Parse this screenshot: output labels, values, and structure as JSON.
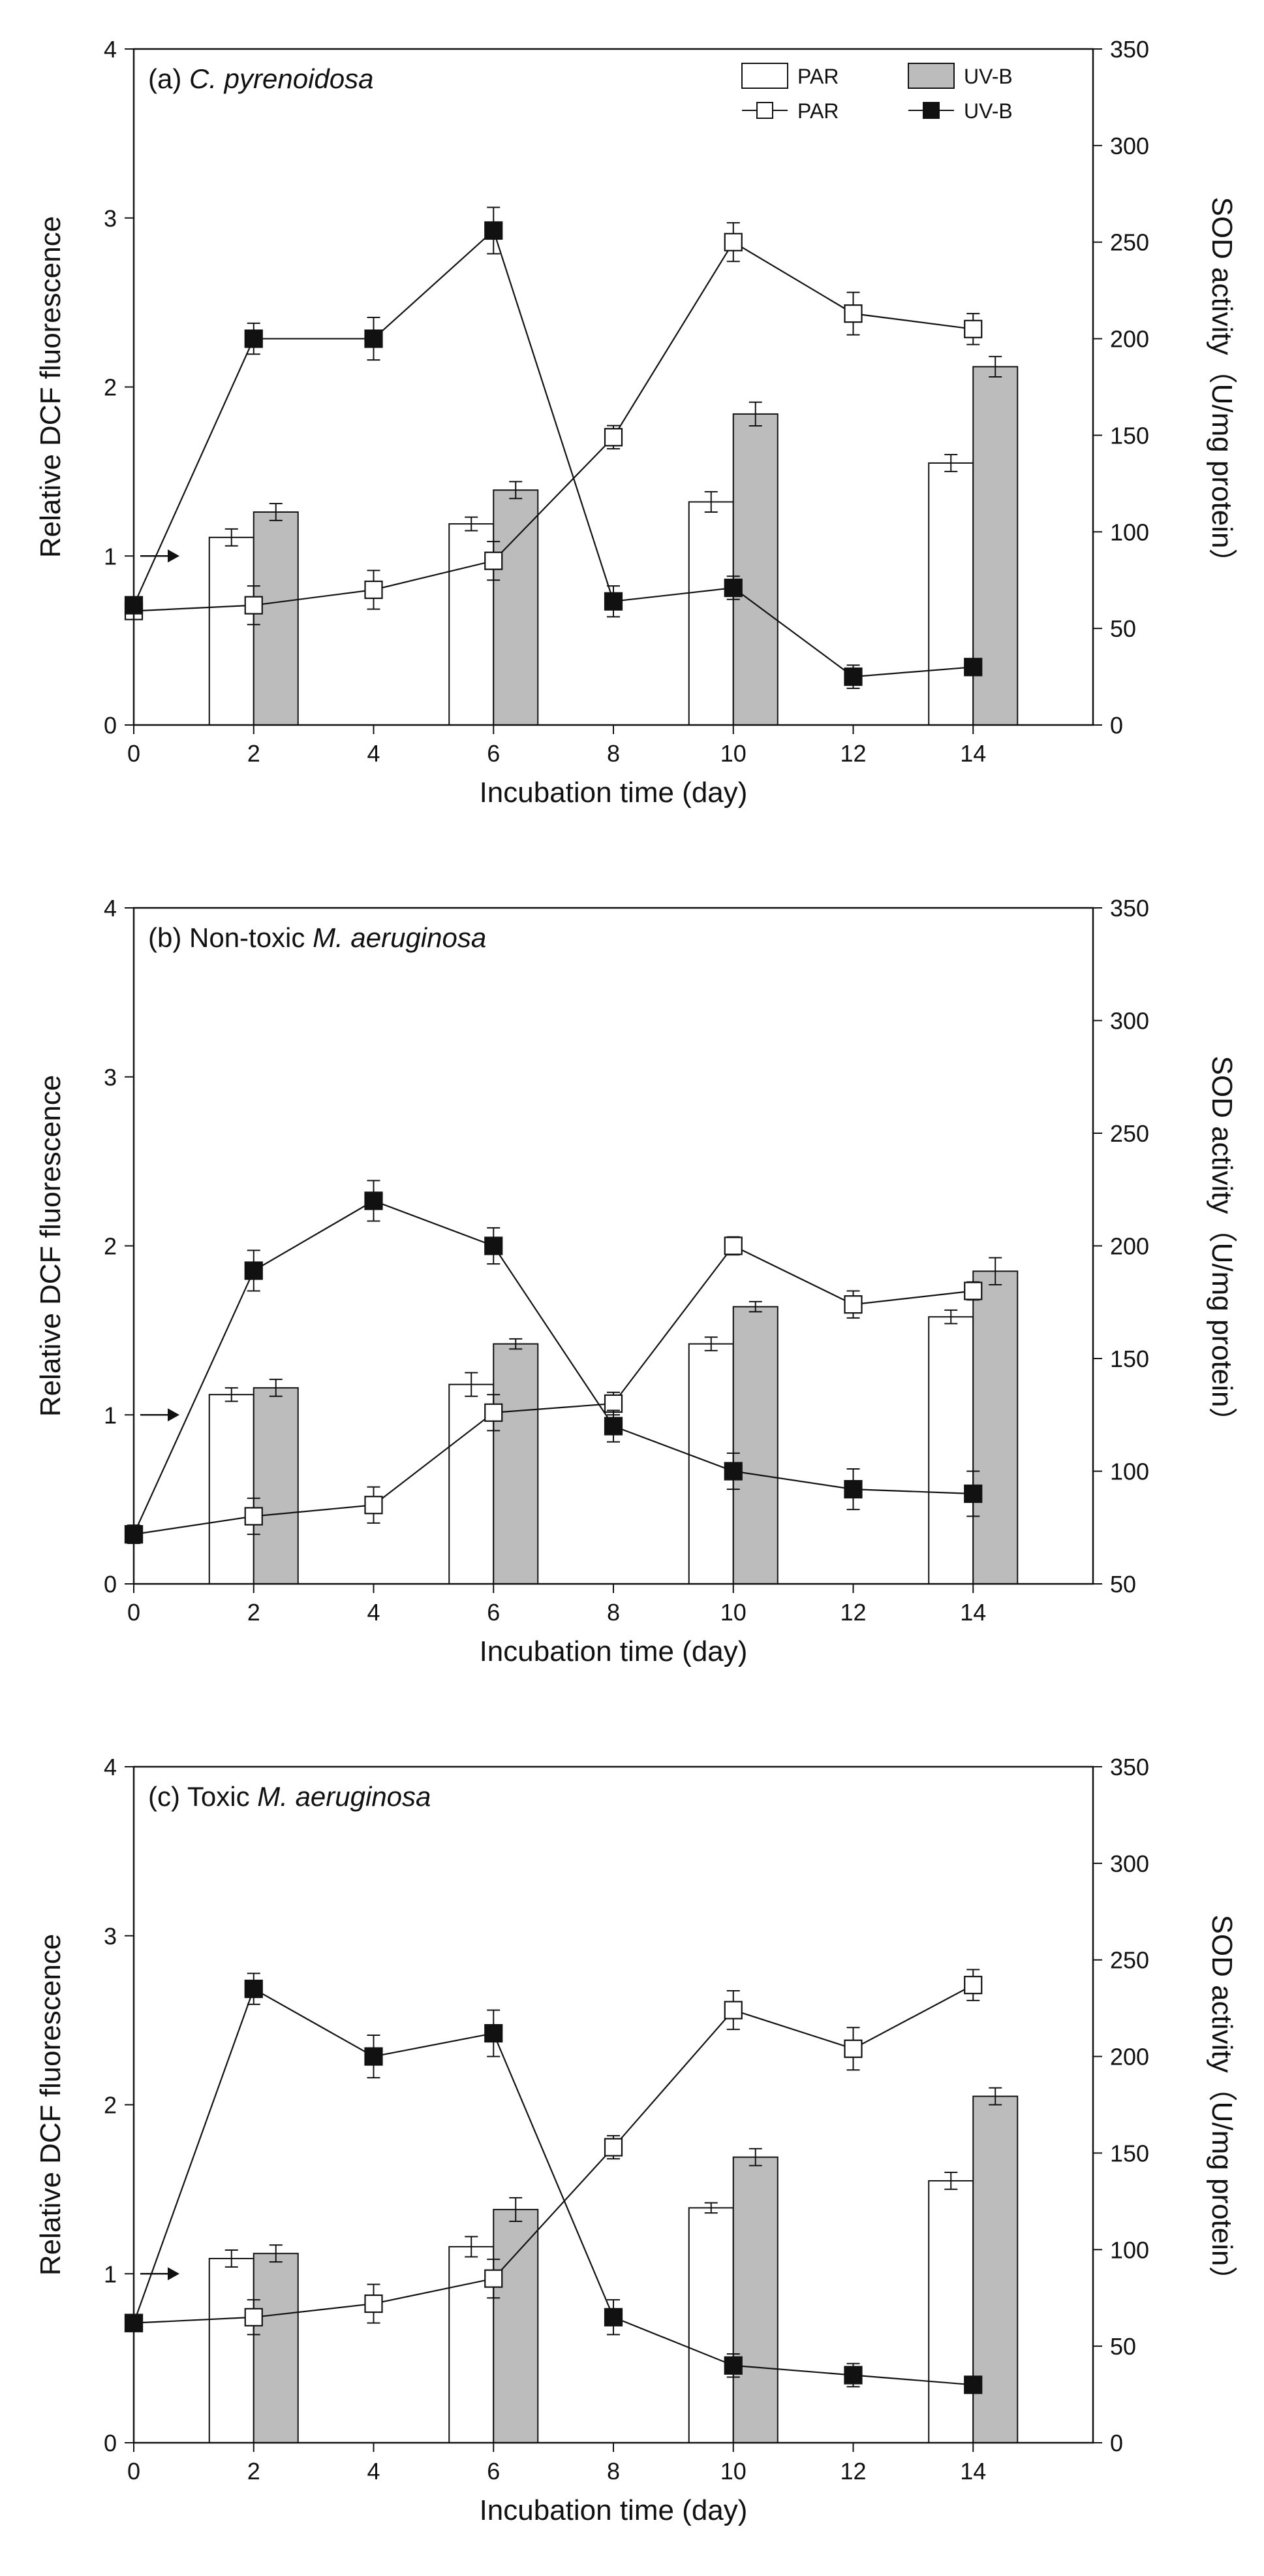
{
  "chart_data": [
    {
      "type": "bar",
      "panel_label": "(a)",
      "title": "C. pyrenoidosa",
      "title_prefix": "",
      "xlabel": "Incubation time (day)",
      "ylabel_left": "Relative DCF fluorescence",
      "ylabel_right": "SOD activity（U/mg protein）",
      "xlim": [
        0,
        16
      ],
      "x_ticks": [
        0,
        2,
        4,
        6,
        8,
        10,
        12,
        14
      ],
      "ylim_left": [
        0,
        4
      ],
      "y_ticks_left": [
        0,
        1,
        2,
        3,
        4
      ],
      "ylim_right": [
        0,
        350
      ],
      "y_ticks_right": [
        0,
        50,
        100,
        150,
        200,
        250,
        300,
        350
      ],
      "arrow_at": 1.0,
      "legend": {
        "position": "top-right",
        "bar_par": "PAR",
        "bar_uvb": "UV-B",
        "line_par": "PAR",
        "line_uvb": "UV-B"
      },
      "bars": {
        "axis": "left",
        "x": [
          2,
          6,
          10,
          14
        ],
        "series": [
          {
            "name": "PAR",
            "values": [
              1.11,
              1.19,
              1.32,
              1.55
            ],
            "errors": [
              0.05,
              0.04,
              0.06,
              0.05
            ]
          },
          {
            "name": "UV-B",
            "values": [
              1.26,
              1.39,
              1.84,
              2.12
            ],
            "errors": [
              0.05,
              0.05,
              0.07,
              0.06
            ]
          }
        ]
      },
      "lines": {
        "axis": "right",
        "x": [
          0,
          2,
          4,
          6,
          8,
          10,
          12,
          14
        ],
        "series": [
          {
            "name": "PAR",
            "values": [
              59,
              62,
              70,
              85,
              149,
              250,
              213,
              205
            ],
            "errors": [
              4,
              10,
              10,
              10,
              6,
              10,
              11,
              8
            ]
          },
          {
            "name": "UV-B",
            "values": [
              62,
              200,
              200,
              256,
              64,
              71,
              25,
              30
            ],
            "errors": [
              4,
              8,
              11,
              12,
              8,
              6,
              6,
              4
            ]
          }
        ]
      }
    },
    {
      "type": "bar",
      "panel_label": "(b)",
      "title": "M. aeruginosa",
      "title_prefix": "Non-toxic",
      "xlabel": "Incubation time (day)",
      "ylabel_left": "Relative DCF fluorescence",
      "ylabel_right": "SOD activity（U/mg protein）",
      "xlim": [
        0,
        16
      ],
      "x_ticks": [
        0,
        2,
        4,
        6,
        8,
        10,
        12,
        14
      ],
      "ylim_left": [
        0,
        4
      ],
      "y_ticks_left": [
        0,
        1,
        2,
        3,
        4
      ],
      "ylim_right": [
        50,
        350
      ],
      "y_ticks_right": [
        50,
        100,
        150,
        200,
        250,
        300,
        350
      ],
      "arrow_at": 1.0,
      "legend": null,
      "bars": {
        "axis": "left",
        "x": [
          2,
          6,
          10,
          14
        ],
        "series": [
          {
            "name": "PAR",
            "values": [
              1.12,
              1.18,
              1.42,
              1.58
            ],
            "errors": [
              0.04,
              0.07,
              0.04,
              0.04
            ]
          },
          {
            "name": "UV-B",
            "values": [
              1.16,
              1.42,
              1.64,
              1.85
            ],
            "errors": [
              0.05,
              0.03,
              0.03,
              0.08
            ]
          }
        ]
      },
      "lines": {
        "axis": "right",
        "x": [
          0,
          2,
          4,
          6,
          8,
          10,
          12,
          14
        ],
        "series": [
          {
            "name": "PAR",
            "values": [
              72,
              80,
              85,
              126,
              130,
              200,
              174,
              180
            ],
            "errors": [
              4,
              8,
              8,
              8,
              5,
              4,
              6,
              4
            ]
          },
          {
            "name": "UV-B",
            "values": [
              72,
              189,
              220,
              200,
              120,
              100,
              92,
              90
            ],
            "errors": [
              4,
              9,
              9,
              8,
              7,
              8,
              9,
              10
            ]
          }
        ]
      }
    },
    {
      "type": "bar",
      "panel_label": "(c)",
      "title": "M. aeruginosa",
      "title_prefix": "Toxic",
      "xlabel": "Incubation time (day)",
      "ylabel_left": "Relative DCF fluorescence",
      "ylabel_right": "SOD activity（U/mg protein）",
      "xlim": [
        0,
        16
      ],
      "x_ticks": [
        0,
        2,
        4,
        6,
        8,
        10,
        12,
        14
      ],
      "ylim_left": [
        0,
        4
      ],
      "y_ticks_left": [
        0,
        1,
        2,
        3,
        4
      ],
      "ylim_right": [
        0,
        350
      ],
      "y_ticks_right": [
        0,
        50,
        100,
        150,
        200,
        250,
        300,
        350
      ],
      "arrow_at": 1.0,
      "legend": null,
      "bars": {
        "axis": "left",
        "x": [
          2,
          6,
          10,
          14
        ],
        "series": [
          {
            "name": "PAR",
            "values": [
              1.09,
              1.16,
              1.39,
              1.55
            ],
            "errors": [
              0.05,
              0.06,
              0.03,
              0.05
            ]
          },
          {
            "name": "UV-B",
            "values": [
              1.12,
              1.38,
              1.69,
              2.05
            ],
            "errors": [
              0.05,
              0.07,
              0.05,
              0.05
            ]
          }
        ]
      },
      "lines": {
        "axis": "right",
        "x": [
          0,
          2,
          4,
          6,
          8,
          10,
          12,
          14
        ],
        "series": [
          {
            "name": "PAR",
            "values": [
              62,
              65,
              72,
              85,
              153,
              224,
              204,
              237
            ],
            "errors": [
              4,
              9,
              10,
              10,
              6,
              10,
              11,
              8
            ]
          },
          {
            "name": "UV-B",
            "values": [
              62,
              235,
              200,
              212,
              65,
              40,
              35,
              30
            ],
            "errors": [
              4,
              8,
              11,
              12,
              9,
              6,
              6,
              4
            ]
          }
        ]
      }
    }
  ]
}
